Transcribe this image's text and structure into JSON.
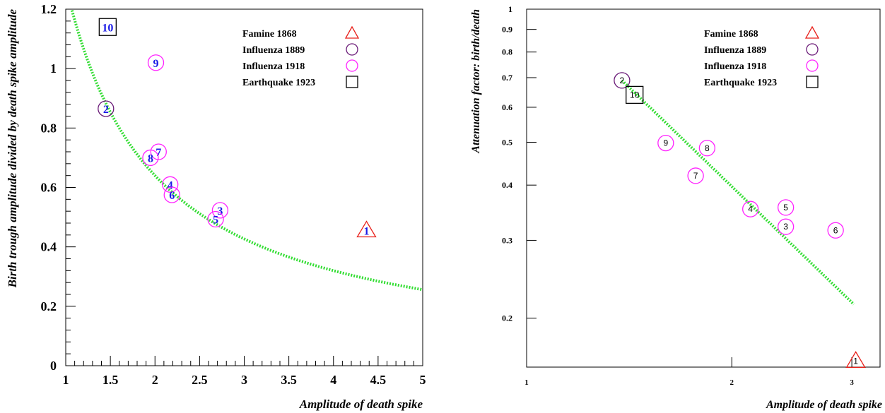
{
  "chart_data": [
    {
      "type": "scatter",
      "xlabel": "Amplitude of death spike",
      "ylabel": "Birth trough amplitude divided by death spike amplitude",
      "xlim": [
        1,
        5
      ],
      "ylim": [
        0,
        1.2
      ],
      "xticks": [
        "1",
        "1.5",
        "2",
        "2.5",
        "3",
        "3.5",
        "4",
        "4.5",
        "5"
      ],
      "yticks": [
        "0",
        "0.2",
        "0.4",
        "0.6",
        "0.8",
        "1",
        "1.2"
      ],
      "legend": [
        {
          "label": "Famine 1868",
          "marker": "triangle",
          "color": "#e8201a"
        },
        {
          "label": "Influenza 1889",
          "marker": "circle",
          "color": "#6a1a78"
        },
        {
          "label": "Influenza 1918",
          "marker": "circle",
          "color": "#ff22ff"
        },
        {
          "label": "Earthquake 1923",
          "marker": "square",
          "color": "#000000"
        }
      ],
      "points": [
        {
          "id": "1",
          "x": 4.37,
          "y": 0.455,
          "event": "Famine 1868"
        },
        {
          "id": "2",
          "x": 1.45,
          "y": 0.865,
          "event": "Influenza 1889"
        },
        {
          "id": "3",
          "x": 2.73,
          "y": 0.523,
          "event": "Influenza 1918"
        },
        {
          "id": "4",
          "x": 2.17,
          "y": 0.61,
          "event": "Influenza 1918"
        },
        {
          "id": "5",
          "x": 2.68,
          "y": 0.493,
          "event": "Influenza 1918"
        },
        {
          "id": "6",
          "x": 2.19,
          "y": 0.575,
          "event": "Influenza 1918"
        },
        {
          "id": "7",
          "x": 2.04,
          "y": 0.72,
          "event": "Influenza 1918"
        },
        {
          "id": "8",
          "x": 1.95,
          "y": 0.7,
          "event": "Influenza 1918"
        },
        {
          "id": "9",
          "x": 2.01,
          "y": 1.02,
          "event": "Influenza 1918"
        },
        {
          "id": "10",
          "x": 1.47,
          "y": 1.14,
          "event": "Earthquake 1923"
        }
      ],
      "fit": {
        "style": "dotted",
        "color": "#33dd33",
        "formula": "y = 1.28 / x"
      },
      "label_color": "#1a1ae6"
    },
    {
      "type": "scatter",
      "xscale": "log",
      "yscale": "log",
      "xlabel": "Amplitude of death spike",
      "ylabel": "Attenuation factor: birth/death",
      "xlim": [
        1,
        3.3
      ],
      "ylim": [
        0.155,
        1.0
      ],
      "xticks": [
        "1",
        "2",
        "3"
      ],
      "yticks": [
        "0.2",
        "0.3",
        "0.4",
        "0.5",
        "0.6",
        "0.7",
        "0.8",
        "0.9",
        "1"
      ],
      "legend": [
        {
          "label": "Famine 1868",
          "marker": "triangle",
          "color": "#e8201a"
        },
        {
          "label": "Influenza 1889",
          "marker": "circle",
          "color": "#6a1a78"
        },
        {
          "label": "Influenza 1918",
          "marker": "circle",
          "color": "#ff22ff"
        },
        {
          "label": "Earthquake 1923",
          "marker": "square",
          "color": "#000000"
        }
      ],
      "points": [
        {
          "id": "1",
          "x": 3.04,
          "y": 0.16,
          "event": "Famine 1868"
        },
        {
          "id": "2",
          "x": 1.38,
          "y": 0.69,
          "event": "Influenza 1889"
        },
        {
          "id": "3",
          "x": 2.4,
          "y": 0.322,
          "event": "Influenza 1918"
        },
        {
          "id": "4",
          "x": 2.13,
          "y": 0.353,
          "event": "Influenza 1918"
        },
        {
          "id": "5",
          "x": 2.4,
          "y": 0.356,
          "event": "Influenza 1918"
        },
        {
          "id": "6",
          "x": 2.84,
          "y": 0.316,
          "event": "Influenza 1918"
        },
        {
          "id": "7",
          "x": 1.77,
          "y": 0.42,
          "event": "Influenza 1918"
        },
        {
          "id": "8",
          "x": 1.84,
          "y": 0.485,
          "event": "Influenza 1918"
        },
        {
          "id": "9",
          "x": 1.6,
          "y": 0.498,
          "event": "Influenza 1918"
        },
        {
          "id": "10",
          "x": 1.44,
          "y": 0.64,
          "event": "Earthquake 1923"
        }
      ],
      "fit": {
        "style": "dotted",
        "color": "#33dd33",
        "x_range": [
          1.38,
          3.02
        ],
        "y_range": [
          0.69,
          0.215
        ]
      },
      "label_color": "#000000"
    }
  ]
}
